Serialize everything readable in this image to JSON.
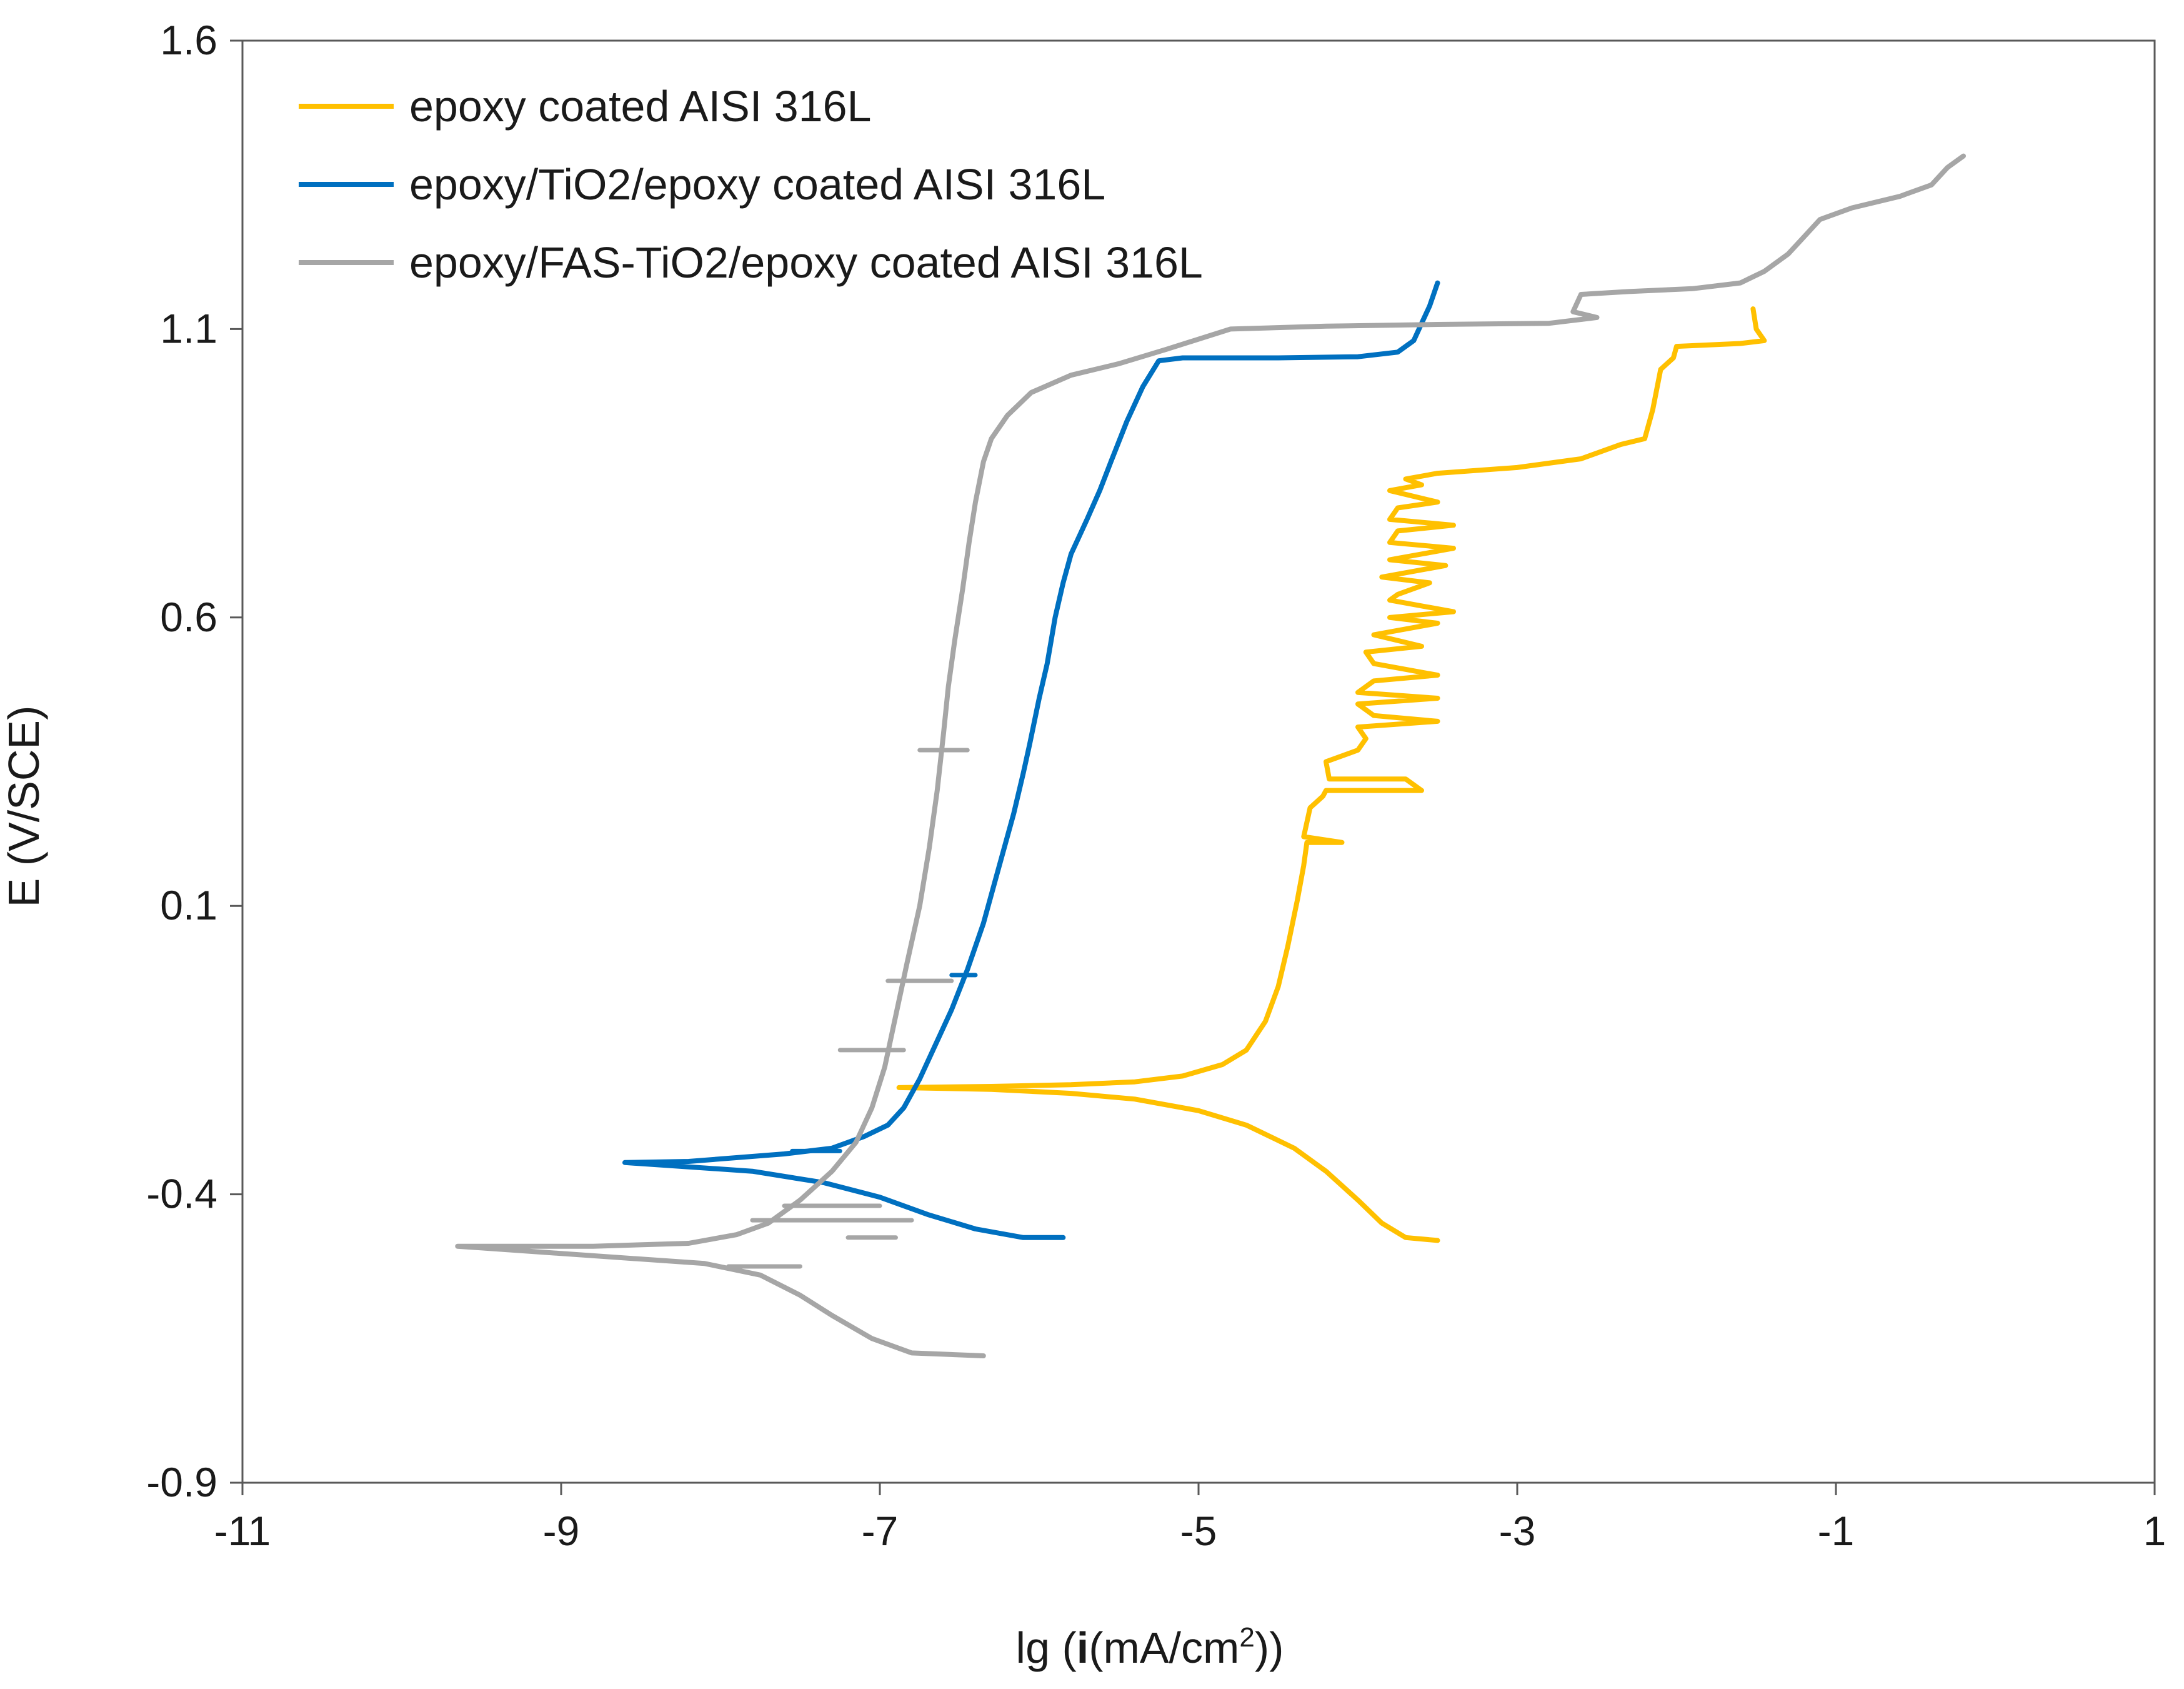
{
  "chart_data": {
    "type": "line",
    "title": "",
    "xlabel": "lg (i(mA/cm2))",
    "xlabel_parts": {
      "prefix": "lg (",
      "bold": "i",
      "unit": "(mA/cm",
      "superscript": "2",
      "suffix": "))"
    },
    "ylabel": "E (V/SCE)",
    "xlim": [
      -11,
      1
    ],
    "ylim": [
      -0.9,
      1.6
    ],
    "xticks": [
      -11,
      -9,
      -7,
      -5,
      -3,
      -1,
      1
    ],
    "yticks": [
      -0.9,
      -0.4,
      0.1,
      0.6,
      1.1,
      1.6
    ],
    "xtick_labels": [
      "-11",
      "-9",
      "-7",
      "-5",
      "-3",
      "-1",
      "1"
    ],
    "ytick_labels": [
      "-0.9",
      "-0.4",
      "0.1",
      "0.6",
      "1.1",
      "1.6"
    ],
    "legend_position": "top-left",
    "grid": false,
    "series": [
      {
        "name": "epoxy coated AISI 316L",
        "color": "#FFC000",
        "points": [
          [
            -3.5,
            -0.48
          ],
          [
            -3.7,
            -0.475
          ],
          [
            -3.85,
            -0.45
          ],
          [
            -4.0,
            -0.41
          ],
          [
            -4.2,
            -0.36
          ],
          [
            -4.4,
            -0.32
          ],
          [
            -4.7,
            -0.28
          ],
          [
            -5.0,
            -0.255
          ],
          [
            -5.4,
            -0.235
          ],
          [
            -5.8,
            -0.225
          ],
          [
            -6.3,
            -0.218
          ],
          [
            -6.88,
            -0.215
          ],
          [
            -6.3,
            -0.213
          ],
          [
            -5.8,
            -0.21
          ],
          [
            -5.4,
            -0.205
          ],
          [
            -5.1,
            -0.195
          ],
          [
            -4.85,
            -0.175
          ],
          [
            -4.7,
            -0.15
          ],
          [
            -4.58,
            -0.1
          ],
          [
            -4.5,
            -0.04
          ],
          [
            -4.44,
            0.03
          ],
          [
            -4.38,
            0.11
          ],
          [
            -4.34,
            0.17
          ],
          [
            -4.32,
            0.21
          ],
          [
            -4.1,
            0.21
          ],
          [
            -4.34,
            0.22
          ],
          [
            -4.3,
            0.27
          ],
          [
            -4.22,
            0.29
          ],
          [
            -4.2,
            0.3
          ],
          [
            -3.6,
            0.3
          ],
          [
            -3.7,
            0.32
          ],
          [
            -4.18,
            0.32
          ],
          [
            -4.2,
            0.35
          ],
          [
            -4.0,
            0.37
          ],
          [
            -3.95,
            0.39
          ],
          [
            -4.0,
            0.41
          ],
          [
            -3.5,
            0.42
          ],
          [
            -3.9,
            0.43
          ],
          [
            -4.0,
            0.45
          ],
          [
            -3.5,
            0.46
          ],
          [
            -4.0,
            0.47
          ],
          [
            -3.9,
            0.49
          ],
          [
            -3.5,
            0.5
          ],
          [
            -3.9,
            0.52
          ],
          [
            -3.95,
            0.54
          ],
          [
            -3.6,
            0.55
          ],
          [
            -3.9,
            0.57
          ],
          [
            -3.5,
            0.59
          ],
          [
            -3.8,
            0.6
          ],
          [
            -3.4,
            0.61
          ],
          [
            -3.8,
            0.63
          ],
          [
            -3.75,
            0.64
          ],
          [
            -3.55,
            0.66
          ],
          [
            -3.85,
            0.67
          ],
          [
            -3.45,
            0.69
          ],
          [
            -3.8,
            0.7
          ],
          [
            -3.4,
            0.72
          ],
          [
            -3.8,
            0.73
          ],
          [
            -3.75,
            0.75
          ],
          [
            -3.4,
            0.76
          ],
          [
            -3.8,
            0.77
          ],
          [
            -3.75,
            0.79
          ],
          [
            -3.5,
            0.8
          ],
          [
            -3.8,
            0.82
          ],
          [
            -3.6,
            0.83
          ],
          [
            -3.7,
            0.84
          ],
          [
            -3.5,
            0.85
          ],
          [
            -3.0,
            0.86
          ],
          [
            -2.6,
            0.875
          ],
          [
            -2.35,
            0.9
          ],
          [
            -2.2,
            0.91
          ],
          [
            -2.15,
            0.96
          ],
          [
            -2.1,
            1.03
          ],
          [
            -2.02,
            1.05
          ],
          [
            -2.0,
            1.07
          ],
          [
            -1.6,
            1.075
          ],
          [
            -1.45,
            1.08
          ],
          [
            -1.5,
            1.1
          ],
          [
            -1.52,
            1.135
          ]
        ]
      },
      {
        "name": "epoxy/TiO2/epoxy coated AISI 316L",
        "color": "#0070C0",
        "points": [
          [
            -5.85,
            -0.475
          ],
          [
            -6.1,
            -0.475
          ],
          [
            -6.4,
            -0.46
          ],
          [
            -6.7,
            -0.435
          ],
          [
            -7.0,
            -0.405
          ],
          [
            -7.35,
            -0.38
          ],
          [
            -7.8,
            -0.36
          ],
          [
            -8.6,
            -0.345
          ],
          [
            -8.2,
            -0.343
          ],
          [
            -7.6,
            -0.33
          ],
          [
            -7.3,
            -0.32
          ],
          [
            -7.1,
            -0.3
          ],
          [
            -6.95,
            -0.28
          ],
          [
            -6.85,
            -0.25
          ],
          [
            -6.75,
            -0.2
          ],
          [
            -6.65,
            -0.14
          ],
          [
            -6.55,
            -0.08
          ],
          [
            -6.45,
            -0.01
          ],
          [
            -6.35,
            0.07
          ],
          [
            -6.28,
            0.14
          ],
          [
            -6.22,
            0.2
          ],
          [
            -6.16,
            0.26
          ],
          [
            -6.1,
            0.33
          ],
          [
            -6.06,
            0.38
          ],
          [
            -6.0,
            0.46
          ],
          [
            -5.95,
            0.52
          ],
          [
            -5.9,
            0.6
          ],
          [
            -5.85,
            0.66
          ],
          [
            -5.8,
            0.71
          ],
          [
            -5.75,
            0.74
          ],
          [
            -5.7,
            0.77
          ],
          [
            -5.62,
            0.82
          ],
          [
            -5.55,
            0.87
          ],
          [
            -5.45,
            0.94
          ],
          [
            -5.35,
            1.0
          ],
          [
            -5.25,
            1.045
          ],
          [
            -5.1,
            1.05
          ],
          [
            -4.5,
            1.05
          ],
          [
            -4.0,
            1.052
          ],
          [
            -3.75,
            1.06
          ],
          [
            -3.65,
            1.08
          ],
          [
            -3.6,
            1.11
          ],
          [
            -3.55,
            1.14
          ],
          [
            -3.5,
            1.18
          ]
        ]
      },
      {
        "name": "epoxy/FAS-TiO2/epoxy coated AISI 316L",
        "color": "#A6A6A6",
        "points": [
          [
            -6.35,
            -0.68
          ],
          [
            -6.8,
            -0.675
          ],
          [
            -7.05,
            -0.65
          ],
          [
            -7.3,
            -0.61
          ],
          [
            -7.5,
            -0.575
          ],
          [
            -7.75,
            -0.54
          ],
          [
            -8.1,
            -0.52
          ],
          [
            -9.65,
            -0.49
          ],
          [
            -8.8,
            -0.49
          ],
          [
            -8.2,
            -0.485
          ],
          [
            -7.9,
            -0.47
          ],
          [
            -7.7,
            -0.45
          ],
          [
            -7.5,
            -0.41
          ],
          [
            -7.3,
            -0.36
          ],
          [
            -7.15,
            -0.31
          ],
          [
            -7.05,
            -0.25
          ],
          [
            -6.97,
            -0.18
          ],
          [
            -6.9,
            -0.09
          ],
          [
            -6.83,
            0.0
          ],
          [
            -6.75,
            0.1
          ],
          [
            -6.69,
            0.2
          ],
          [
            -6.64,
            0.3
          ],
          [
            -6.6,
            0.4
          ],
          [
            -6.57,
            0.48
          ],
          [
            -6.53,
            0.56
          ],
          [
            -6.48,
            0.65
          ],
          [
            -6.44,
            0.73
          ],
          [
            -6.4,
            0.8
          ],
          [
            -6.35,
            0.87
          ],
          [
            -6.3,
            0.91
          ],
          [
            -6.2,
            0.95
          ],
          [
            -6.05,
            0.99
          ],
          [
            -5.8,
            1.02
          ],
          [
            -5.5,
            1.04
          ],
          [
            -5.2,
            1.065
          ],
          [
            -4.8,
            1.1
          ],
          [
            -4.2,
            1.105
          ],
          [
            -3.5,
            1.108
          ],
          [
            -2.8,
            1.11
          ],
          [
            -2.5,
            1.12
          ],
          [
            -2.65,
            1.13
          ],
          [
            -2.6,
            1.16
          ],
          [
            -2.3,
            1.165
          ],
          [
            -1.9,
            1.17
          ],
          [
            -1.6,
            1.18
          ],
          [
            -1.45,
            1.2
          ],
          [
            -1.3,
            1.23
          ],
          [
            -1.2,
            1.26
          ],
          [
            -1.1,
            1.29
          ],
          [
            -0.9,
            1.31
          ],
          [
            -0.6,
            1.33
          ],
          [
            -0.4,
            1.35
          ],
          [
            -0.3,
            1.38
          ],
          [
            -0.2,
            1.4
          ]
        ]
      }
    ],
    "artifacts": [
      {
        "series": "epoxy/FAS-TiO2/epoxy coated AISI 316L",
        "color": "#A6A6A6",
        "y": -0.525,
        "x1": -7.95,
        "x2": -7.5
      },
      {
        "series": "epoxy/FAS-TiO2/epoxy coated AISI 316L",
        "color": "#A6A6A6",
        "y": -0.42,
        "x1": -7.6,
        "x2": -7.0
      },
      {
        "series": "epoxy/FAS-TiO2/epoxy coated AISI 316L",
        "color": "#A6A6A6",
        "y": -0.445,
        "x1": -7.8,
        "x2": -6.8
      },
      {
        "series": "epoxy/FAS-TiO2/epoxy coated AISI 316L",
        "color": "#A6A6A6",
        "y": -0.475,
        "x1": -7.2,
        "x2": -6.9
      },
      {
        "series": "epoxy/FAS-TiO2/epoxy coated AISI 316L",
        "color": "#A6A6A6",
        "y": -0.15,
        "x1": -7.25,
        "x2": -6.85
      },
      {
        "series": "epoxy/FAS-TiO2/epoxy coated AISI 316L",
        "color": "#A6A6A6",
        "y": -0.03,
        "x1": -6.95,
        "x2": -6.55
      },
      {
        "series": "epoxy/FAS-TiO2/epoxy coated AISI 316L",
        "color": "#A6A6A6",
        "y": 0.37,
        "x1": -6.75,
        "x2": -6.45
      },
      {
        "series": "epoxy/TiO2/epoxy coated AISI 316L",
        "color": "#0070C0",
        "y": -0.325,
        "x1": -7.55,
        "x2": -7.25
      },
      {
        "series": "epoxy/TiO2/epoxy coated AISI 316L",
        "color": "#0070C0",
        "y": -0.02,
        "x1": -6.55,
        "x2": -6.4
      }
    ]
  }
}
